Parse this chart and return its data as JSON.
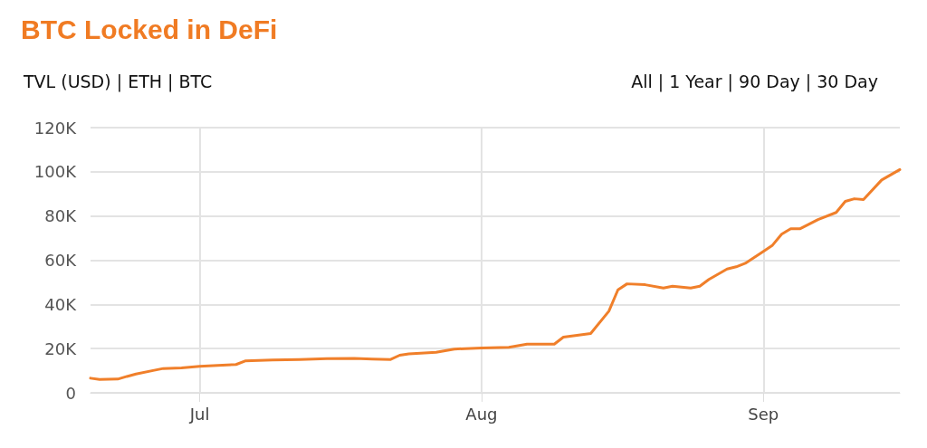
{
  "chart_data": {
    "type": "line",
    "title": "BTC Locked in DeFi",
    "annotations": [
      "TVL (USD) | ETH | BTC",
      "All | 1 Year | 90 Day | 30 Day"
    ],
    "x": [
      "--06-19",
      "--06-20",
      "--06-22",
      "--06-23",
      "--06-24",
      "--06-26",
      "--06-27",
      "--06-29",
      "--07-01",
      "--07-03",
      "--07-05",
      "--07-06",
      "--07-09",
      "--07-12",
      "--07-15",
      "--07-18",
      "--07-20",
      "--07-22",
      "--07-23",
      "--07-24",
      "--07-27",
      "--07-29",
      "--08-01",
      "--08-04",
      "--08-06",
      "--08-09",
      "--08-10",
      "--08-13",
      "--08-15",
      "--08-16",
      "--08-17",
      "--08-19",
      "--08-21",
      "--08-22",
      "--08-24",
      "--08-25",
      "--08-26",
      "--08-28",
      "--08-29",
      "--08-30",
      "--09-01",
      "--09-02",
      "--09-03",
      "--09-04",
      "--09-05",
      "--09-07",
      "--09-09",
      "--09-10",
      "--09-11",
      "--09-12",
      "--09-14",
      "--09-16"
    ],
    "series": [
      {
        "color": "#f07f2a",
        "values": [
          6600,
          6000,
          6200,
          7400,
          8500,
          10200,
          11000,
          11300,
          12000,
          12400,
          12800,
          14400,
          14800,
          15100,
          15500,
          15600,
          15300,
          15100,
          17000,
          17600,
          18300,
          19800,
          20300,
          20600,
          22000,
          22000,
          25200,
          26800,
          36900,
          46600,
          49300,
          48900,
          47400,
          48200,
          47400,
          48200,
          51300,
          56000,
          57000,
          58600,
          64000,
          66800,
          71800,
          74200,
          74200,
          78400,
          81600,
          86600,
          87800,
          87400,
          96300,
          101000
        ]
      }
    ],
    "xlim": [
      "--06-19",
      "--09-16"
    ],
    "xticks": [
      {
        "value": "--07-01",
        "label": "Jul"
      },
      {
        "value": "--08-01",
        "label": "Aug"
      },
      {
        "value": "--09-01",
        "label": "Sep"
      }
    ],
    "ylim": [
      0,
      120000
    ],
    "yticks": [
      0,
      {
        "value": 20000,
        "label": "20K"
      },
      {
        "value": 40000,
        "label": "40K"
      },
      {
        "value": 60000,
        "label": "60K"
      },
      {
        "value": 80000,
        "label": "80K"
      },
      {
        "value": 100000,
        "label": "100K"
      },
      {
        "value": 120000,
        "label": "120K"
      }
    ],
    "grid": true,
    "marker": "none",
    "line_style": "solid"
  }
}
